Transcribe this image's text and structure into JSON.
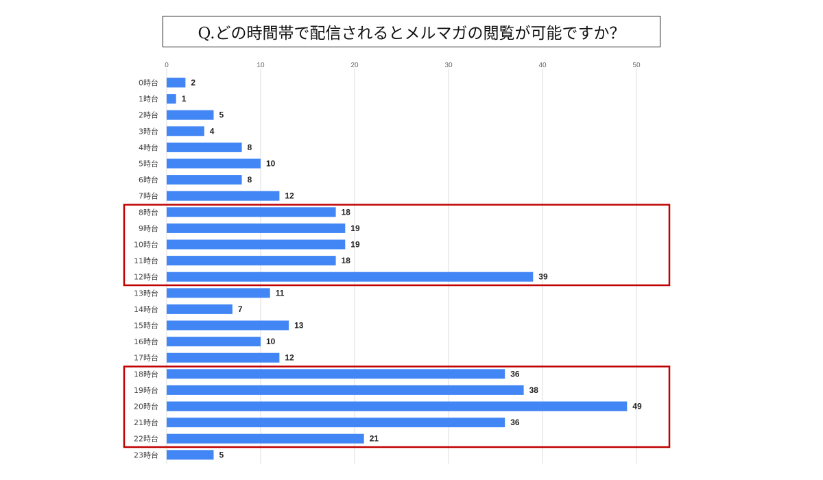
{
  "title": "Q.どの時間帯で配信されるとメルマガの閲覧が可能ですか？",
  "colors": {
    "bar": "#4285f4",
    "highlight_border": "#c00000",
    "grid": "#dddddd"
  },
  "chart_data": {
    "type": "bar",
    "orientation": "horizontal",
    "title": "",
    "xlabel": "",
    "ylabel": "",
    "xlim": [
      0,
      50
    ],
    "x_ticks": [
      0,
      10,
      20,
      30,
      40,
      50
    ],
    "grid": true,
    "legend": "none",
    "categories": [
      "0時台",
      "1時台",
      "2時台",
      "3時台",
      "4時台",
      "5時台",
      "6時台",
      "7時台",
      "8時台",
      "9時台",
      "10時台",
      "11時台",
      "12時台",
      "13時台",
      "14時台",
      "15時台",
      "16時台",
      "17時台",
      "18時台",
      "19時台",
      "20時台",
      "21時台",
      "22時台",
      "23時台"
    ],
    "values": [
      2,
      1,
      5,
      4,
      8,
      10,
      8,
      12,
      18,
      19,
      19,
      18,
      39,
      11,
      7,
      13,
      10,
      12,
      36,
      38,
      49,
      36,
      21,
      5
    ],
    "highlight_groups": [
      {
        "from": "8時台",
        "to": "12時台"
      },
      {
        "from": "18時台",
        "to": "22時台"
      }
    ]
  }
}
